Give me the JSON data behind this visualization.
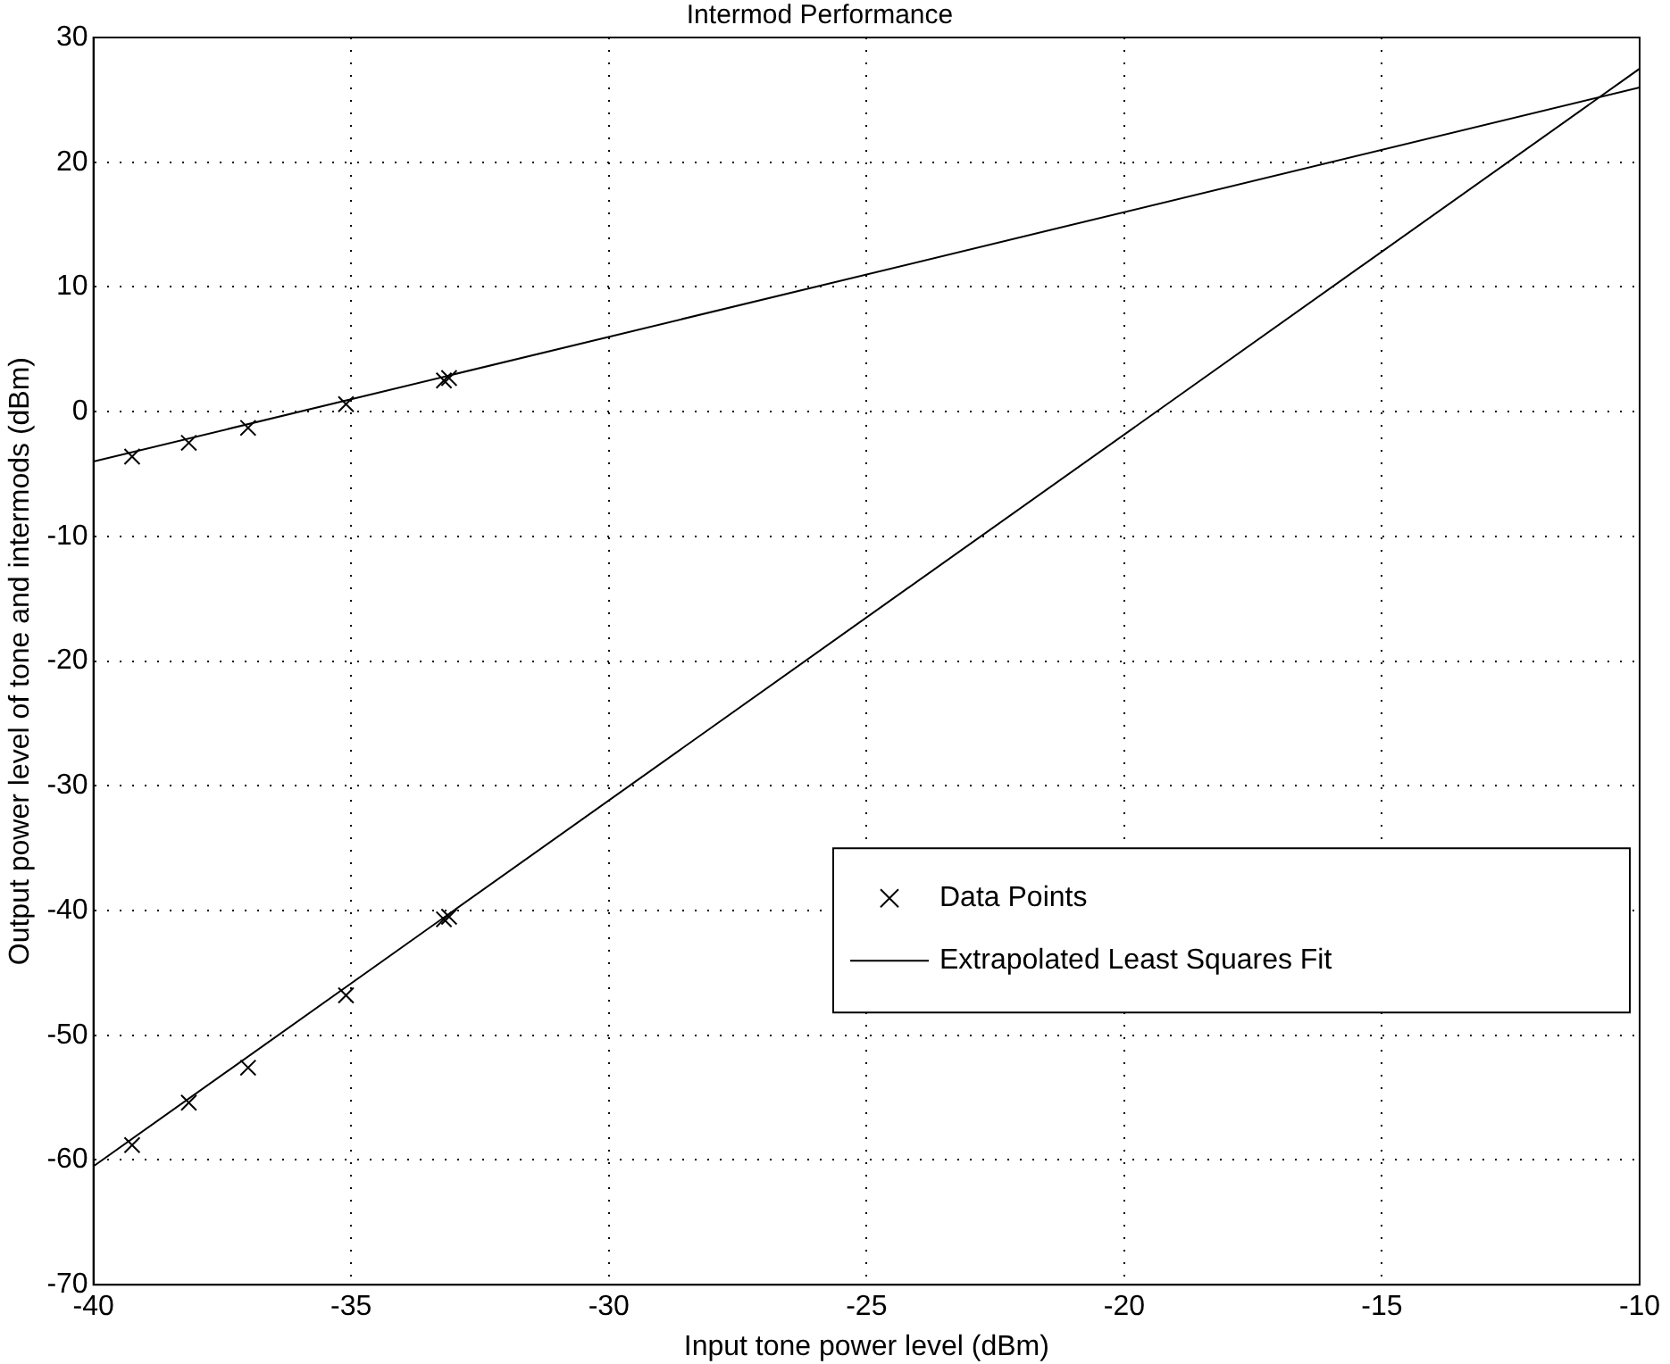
{
  "chart_data": {
    "type": "scatter",
    "title": "Intermod Performance",
    "xlabel": "Input tone power level (dBm)",
    "ylabel": "Output power level of tone and intermods (dBm)",
    "xlim": [
      -40,
      -10
    ],
    "xticks": [
      -40,
      -35,
      -30,
      -25,
      -20,
      -15,
      -10
    ],
    "ylim": [
      -70,
      30
    ],
    "yticks": [
      -70,
      -60,
      -50,
      -40,
      -30,
      -20,
      -10,
      0,
      10,
      20,
      30
    ],
    "grid": true,
    "legend": "bottom right",
    "marker": "cross",
    "series": [
      {
        "name": "Data Points",
        "color": "#000000",
        "x": [
          -39.25,
          -38.15,
          -37.0,
          -35.1,
          -33.2,
          -33.1
        ],
        "values": [
          -3.6,
          -2.5,
          -1.3,
          0.6,
          2.5,
          2.7
        ]
      },
      {
        "color": "#000000",
        "x": [
          -39.25,
          -38.15,
          -37.0,
          -35.1,
          -33.2,
          -33.1
        ],
        "values": [
          -58.8,
          -55.4,
          -52.6,
          -46.8,
          -40.7,
          -40.5
        ]
      },
      {
        "name": "Extrapolated Least Squares Fit",
        "type": "line",
        "color": "#000000",
        "marker": "none",
        "line_style": "solid",
        "x": [
          -40,
          -10
        ],
        "values": [
          -4,
          26
        ]
      },
      {
        "type": "line",
        "color": "#000000",
        "marker": "none",
        "line_style": "solid",
        "x": [
          -40,
          -10
        ],
        "values": [
          -60.5,
          27.5
        ]
      }
    ]
  }
}
